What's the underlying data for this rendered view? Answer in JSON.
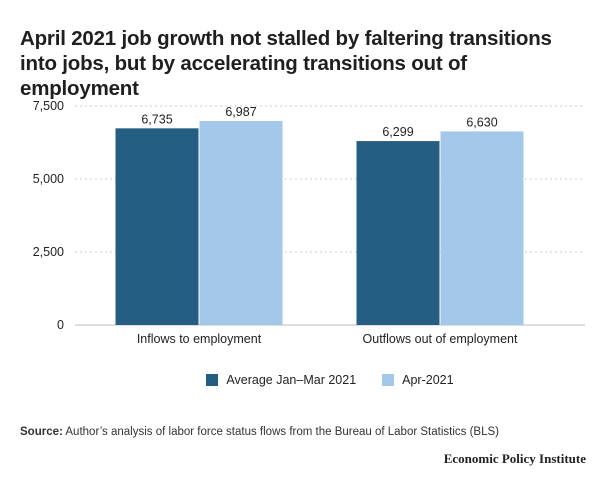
{
  "title": "April 2021 job growth not stalled by faltering transitions into jobs, but by accelerating transitions out of employment",
  "source_label": "Source:",
  "source_text": "Author’s analysis of labor force status flows from the Bureau of Labor Statistics (BLS)",
  "brand": "Economic Policy Institute",
  "colors": {
    "series1": "#255e82",
    "series2": "#a3c8ea",
    "grid": "#cfcfcf"
  },
  "chart_data": {
    "type": "bar",
    "categories": [
      "Inflows to employment",
      "Outflows out of employment"
    ],
    "series": [
      {
        "name": "Average Jan–Mar 2021",
        "values": [
          6735,
          6299
        ],
        "labels": [
          "6,735",
          "6,299"
        ]
      },
      {
        "name": "Apr-2021",
        "values": [
          6987,
          6630
        ],
        "labels": [
          "6,987",
          "6,630"
        ]
      }
    ],
    "ylim": [
      0,
      7500
    ],
    "yticks": [
      0,
      2500,
      5000,
      7500
    ],
    "ytick_labels": [
      "0",
      "2,500",
      "5,000",
      "7,500"
    ],
    "grid": true,
    "legend_position": "bottom"
  }
}
